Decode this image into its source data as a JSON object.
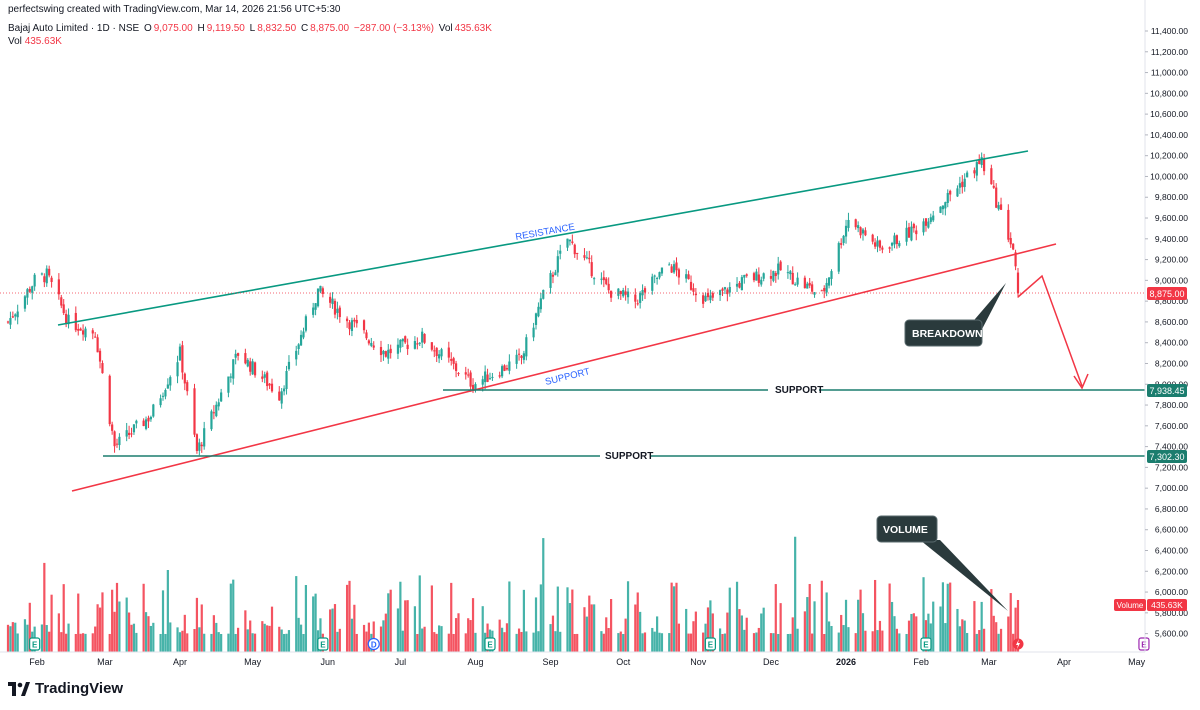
{
  "header": {
    "attribution": "perfectswing created with TradingView.com, Mar 14, 2026 21:56 UTC+5:30",
    "symbol": "Bajaj Auto Limited · 1D · NSE",
    "open_label": "O",
    "open": "9,075.00",
    "high_label": "H",
    "high": "9,119.50",
    "low_label": "L",
    "low": "8,832.50",
    "close_label": "C",
    "close": "8,875.00",
    "change": "−287.00 (−3.13%)",
    "vol_label": "Vol",
    "vol": "435.63K",
    "vol2_label": "Vol",
    "vol2": "435.63K"
  },
  "price_axis": {
    "ticks": [
      "11,400.00",
      "11,200.00",
      "11,000.00",
      "10,800.00",
      "10,600.00",
      "10,400.00",
      "10,200.00",
      "10,000.00",
      "9,800.00",
      "9,600.00",
      "9,400.00",
      "9,200.00",
      "9,000.00",
      "8,800.00",
      "8,600.00",
      "8,400.00",
      "8,200.00",
      "8,000.00",
      "7,800.00",
      "7,600.00",
      "7,400.00",
      "7,200.00",
      "7,000.00",
      "6,800.00",
      "6,600.00",
      "6,400.00",
      "6,200.00",
      "6,000.00",
      "5,800.00",
      "5,600.00"
    ],
    "last_price": "8,875.00",
    "support_1": "7,938.45",
    "support_2": "7,302.30",
    "volume_tag_label": "Volume",
    "volume_tag_value": "435.63K"
  },
  "time_axis": [
    "Feb",
    "Mar",
    "Apr",
    "May",
    "Jun",
    "Jul",
    "Aug",
    "Sep",
    "Oct",
    "Nov",
    "Dec",
    "2026",
    "Feb",
    "Mar",
    "Apr",
    "May"
  ],
  "annotations": {
    "resistance": "RESISTANCE",
    "support_trend": "SUPPORT",
    "support_1": "SUPPORT",
    "support_2": "SUPPORT",
    "breakdown": "BREAKDOWN",
    "volume": "VOLUME"
  },
  "event_markers": [
    "E",
    "E",
    "D",
    "E",
    "E",
    "E",
    "E"
  ],
  "footer": {
    "brand": "TradingView"
  },
  "colors": {
    "up": "#26a69a",
    "down": "#f23645",
    "resistance": "#089981",
    "support_trend": "#f23645",
    "support_line": "#1b7d6e",
    "callout_bg": "#2a3a3c"
  },
  "chart_data": {
    "type": "candlestick",
    "symbol": "Bajaj Auto Limited",
    "interval": "1D",
    "exchange": "NSE",
    "y_range": [
      5400,
      11500
    ],
    "x_range": [
      "2025-01-20",
      "2026-05-10"
    ],
    "levels": [
      {
        "label": "SUPPORT",
        "value": 7938.45
      },
      {
        "label": "SUPPORT",
        "value": 7302.3
      }
    ],
    "trendlines": [
      {
        "label": "RESISTANCE",
        "from": [
          "2025-02-01",
          8550
        ],
        "to": [
          "2026-03-18",
          10250
        ]
      },
      {
        "label": "SUPPORT",
        "from": [
          "2025-01-28",
          6950
        ],
        "to": [
          "2026-03-18",
          9320
        ]
      }
    ],
    "anchors": [
      [
        "2025-01-20",
        8600
      ],
      [
        "2025-01-31",
        9000
      ],
      [
        "2025-02-05",
        9050
      ],
      [
        "2025-02-14",
        8600
      ],
      [
        "2025-02-25",
        8500
      ],
      [
        "2025-03-05",
        7400
      ],
      [
        "2025-03-20",
        7700
      ],
      [
        "2025-04-01",
        8300
      ],
      [
        "2025-04-08",
        7350
      ],
      [
        "2025-04-25",
        8300
      ],
      [
        "2025-05-12",
        7900
      ],
      [
        "2025-05-28",
        8900
      ],
      [
        "2025-06-10",
        8600
      ],
      [
        "2025-06-25",
        8300
      ],
      [
        "2025-07-10",
        8450
      ],
      [
        "2025-07-31",
        8000
      ],
      [
        "2025-08-20",
        8250
      ],
      [
        "2025-08-28",
        8800
      ],
      [
        "2025-09-08",
        9400
      ],
      [
        "2025-09-25",
        8900
      ],
      [
        "2025-10-06",
        8800
      ],
      [
        "2025-10-20",
        9150
      ],
      [
        "2025-11-05",
        8800
      ],
      [
        "2025-11-20",
        9000
      ],
      [
        "2025-12-05",
        9100
      ],
      [
        "2025-12-22",
        8850
      ],
      [
        "2026-01-02",
        9600
      ],
      [
        "2026-01-15",
        9300
      ],
      [
        "2026-01-30",
        9500
      ],
      [
        "2026-02-12",
        9800
      ],
      [
        "2026-02-26",
        10150
      ],
      [
        "2026-03-05",
        9700
      ],
      [
        "2026-03-11",
        9300
      ],
      [
        "2026-03-13",
        8875
      ]
    ],
    "last": {
      "open": 9075.0,
      "high": 9119.5,
      "low": 8832.5,
      "close": 8875.0,
      "volume": "435.63K"
    }
  }
}
